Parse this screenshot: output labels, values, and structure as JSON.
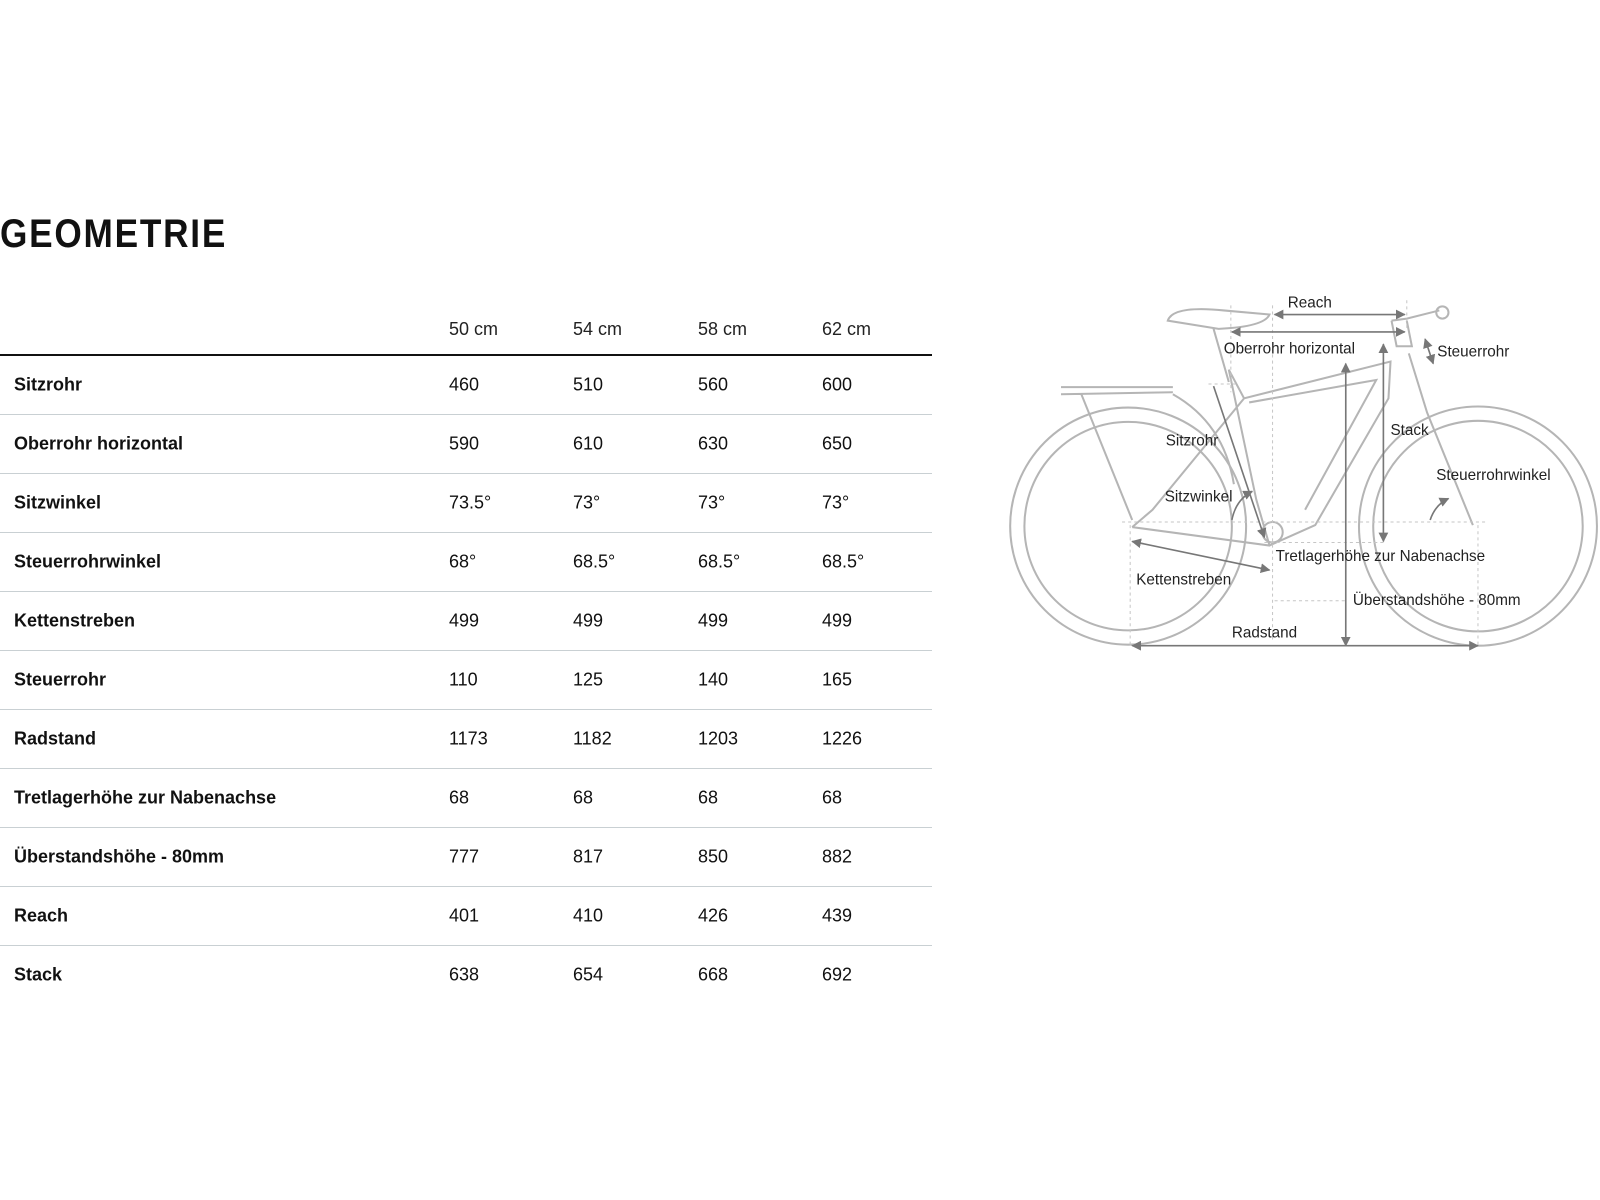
{
  "title": "GEOMETRIE",
  "table": {
    "columns": [
      "50 cm",
      "54 cm",
      "58 cm",
      "62 cm"
    ],
    "rows": [
      {
        "label": "Sitzrohr",
        "values": [
          "460",
          "510",
          "560",
          "600"
        ]
      },
      {
        "label": "Oberrohr horizontal",
        "values": [
          "590",
          "610",
          "630",
          "650"
        ]
      },
      {
        "label": "Sitzwinkel",
        "values": [
          "73.5°",
          "73°",
          "73°",
          "73°"
        ]
      },
      {
        "label": "Steuerrohrwinkel",
        "values": [
          "68°",
          "68.5°",
          "68.5°",
          "68.5°"
        ]
      },
      {
        "label": "Kettenstreben",
        "values": [
          "499",
          "499",
          "499",
          "499"
        ]
      },
      {
        "label": "Steuerrohr",
        "values": [
          "110",
          "125",
          "140",
          "165"
        ]
      },
      {
        "label": "Radstand",
        "values": [
          "1173",
          "1182",
          "1203",
          "1226"
        ]
      },
      {
        "label": "Tretlagerhöhe zur Nabenachse",
        "values": [
          "68",
          "68",
          "68",
          "68"
        ]
      },
      {
        "label": "Überstandshöhe - 80mm",
        "values": [
          "777",
          "817",
          "850",
          "882"
        ]
      },
      {
        "label": "Reach",
        "values": [
          "401",
          "410",
          "426",
          "439"
        ]
      },
      {
        "label": "Stack",
        "values": [
          "638",
          "654",
          "668",
          "692"
        ]
      }
    ]
  },
  "diagram": {
    "labels": {
      "reach": "Reach",
      "oberrohr": "Oberrohr horizontal",
      "steuerrohr": "Steuerrohr",
      "stack": "Stack",
      "sitzrohr": "Sitzrohr",
      "steuerrohrwinkel": "Steuerrohrwinkel",
      "sitzwinkel": "Sitzwinkel",
      "tretlager": "Tretlagerhöhe zur Nabenachse",
      "kettenstreben": "Kettenstreben",
      "ueberstand": "Überstandshöhe - 80mm",
      "radstand": "Radstand"
    },
    "line_color": "#b5b5b5",
    "arrow_color": "#777777"
  }
}
